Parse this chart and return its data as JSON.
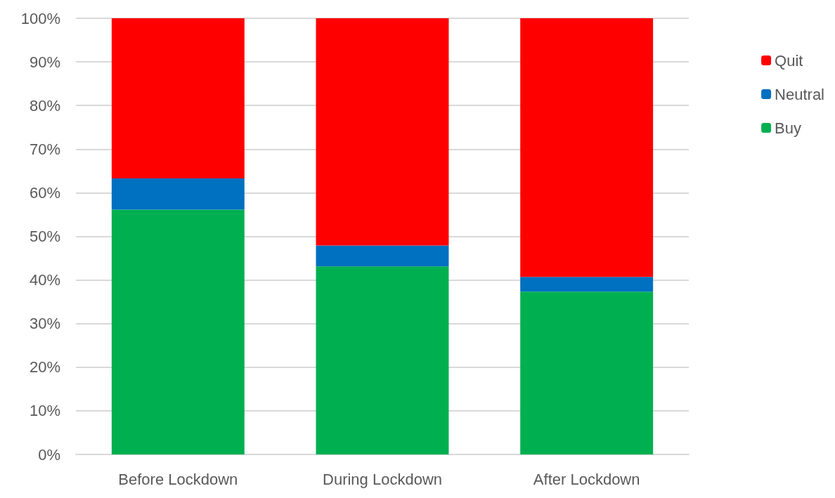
{
  "chart_data": {
    "type": "bar",
    "stacked": true,
    "categories": [
      "Before Lockdown",
      "During Lockdown",
      "After Lockdown"
    ],
    "series": [
      {
        "name": "Buy",
        "color": "#00b050",
        "values": [
          56.1,
          43.1,
          37.3
        ]
      },
      {
        "name": "Neutral",
        "color": "#0070c0",
        "values": [
          7.2,
          4.8,
          3.4
        ]
      },
      {
        "name": "Quit",
        "color": "#ff0000",
        "values": [
          36.7,
          52.1,
          59.3
        ]
      }
    ],
    "ylim": [
      0,
      100
    ],
    "yticks": [
      {
        "value": 0,
        "label": "0%"
      },
      {
        "value": 10,
        "label": "10%"
      },
      {
        "value": 20,
        "label": "20%"
      },
      {
        "value": 30,
        "label": "30%"
      },
      {
        "value": 40,
        "label": "40%"
      },
      {
        "value": 50,
        "label": "50%"
      },
      {
        "value": 60,
        "label": "60%"
      },
      {
        "value": 70,
        "label": "70%"
      },
      {
        "value": 80,
        "label": "80%"
      },
      {
        "value": 90,
        "label": "90%"
      },
      {
        "value": 100,
        "label": "100%"
      }
    ],
    "grid": "y",
    "legend": "right"
  }
}
